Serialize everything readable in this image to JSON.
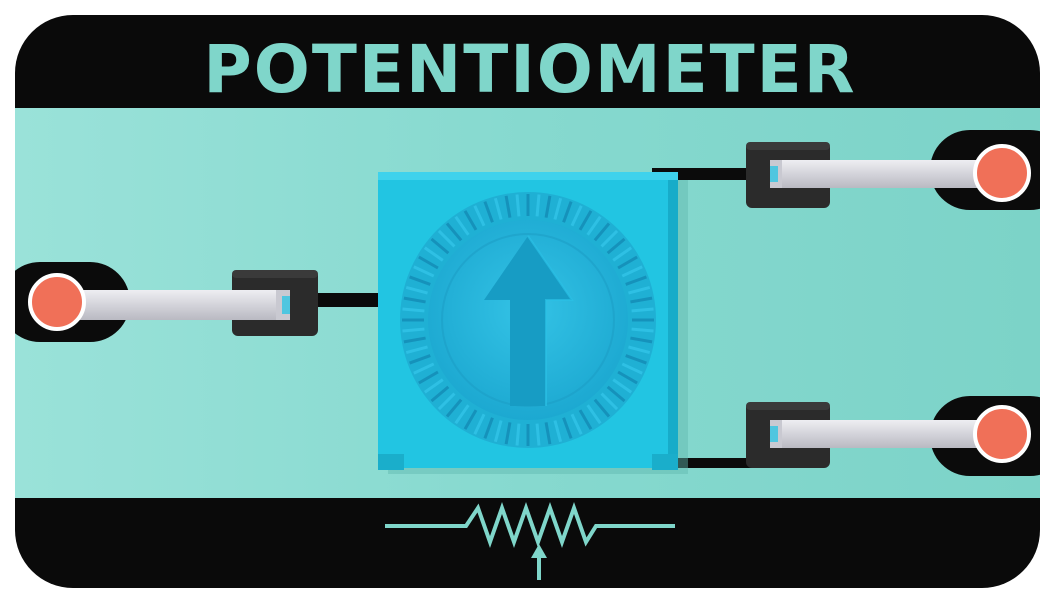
{
  "title": "POTENTIOMETER",
  "colors": {
    "background": "#ffffff",
    "frame": "#0a0a0a",
    "board": "#84d8cf",
    "board_light": "#9ee3db",
    "accent": "#7fd6ca",
    "component_body": "#22c6e3",
    "component_dark": "#16a9c8",
    "knob": "#2cb8dd",
    "terminal_block": "#2b2b2b",
    "lead": "#d7d7dc",
    "pad": "#f07058",
    "pad_ring": "#ffffff",
    "symbol": "#7fd6ca"
  },
  "icons": {
    "knob_arrow": "up-arrow-icon",
    "schematic": "potentiometer-symbol-icon"
  }
}
